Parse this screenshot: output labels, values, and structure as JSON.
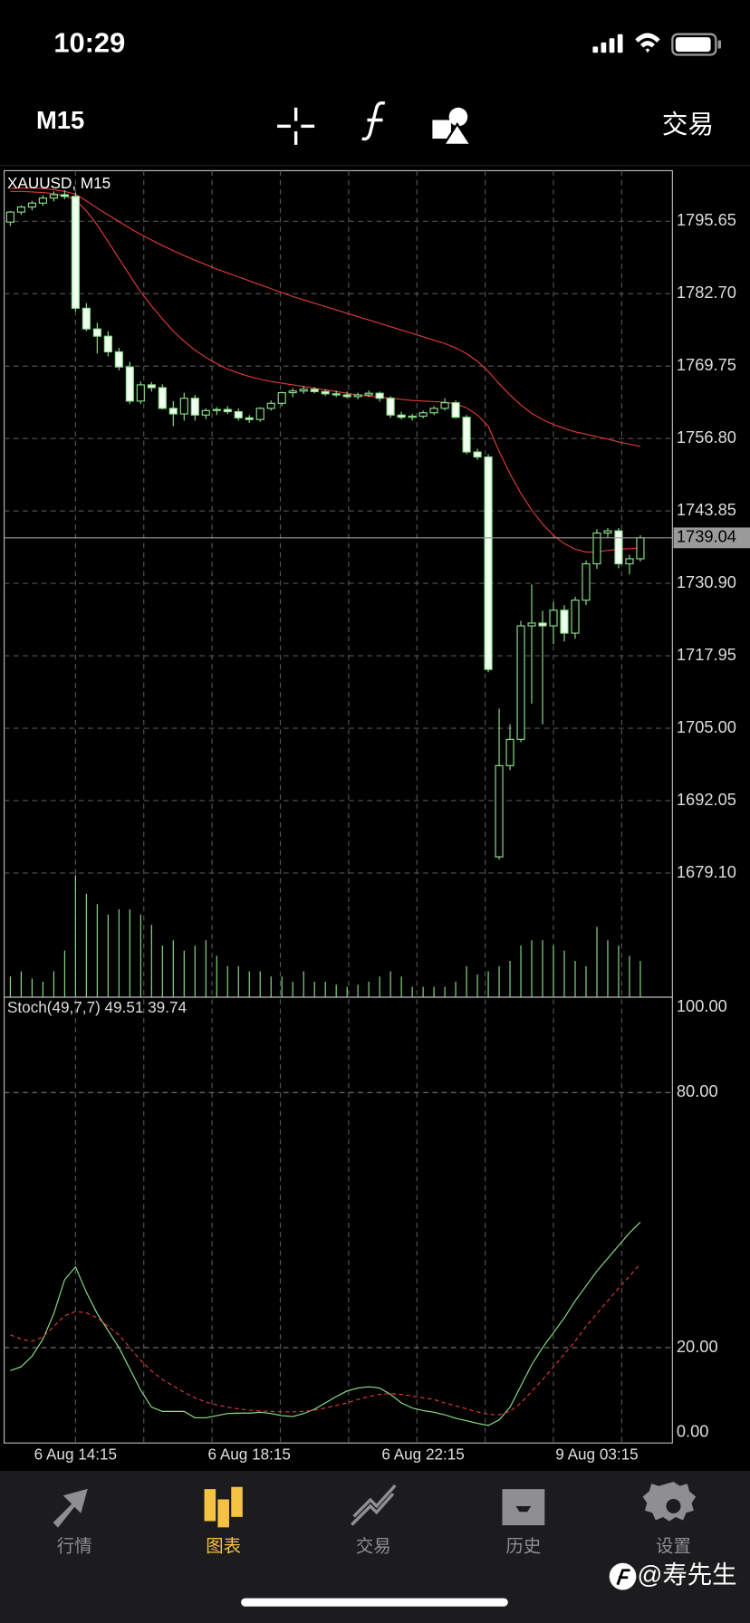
{
  "status_bar": {
    "time": "10:29"
  },
  "toolbar": {
    "timeframe": "M15",
    "trade_button": "交易"
  },
  "chart_data": [
    {
      "type": "candlestick",
      "title": "XAUUSD, M15",
      "open": [
        1795.5,
        1797.3,
        1798.2,
        1798.9,
        1799.8,
        1800.4,
        1800.1,
        1780.1,
        1776.4,
        1775.1,
        1772.3,
        1769.6,
        1763.5,
        1766.4,
        1765.9,
        1762.2,
        1761.2,
        1764.0,
        1761.0,
        1761.8,
        1762.0,
        1761.6,
        1760.5,
        1760.2,
        1762.2,
        1763.1,
        1765.0,
        1765.3,
        1765.6,
        1765.2,
        1764.8,
        1764.6,
        1764.3,
        1764.6,
        1764.9,
        1764.0,
        1761.0,
        1760.6,
        1760.8,
        1761.4,
        1762.2,
        1763.2,
        1760.6,
        1754.4,
        1753.5,
        1682.0,
        1698.3,
        1703.0,
        1723.3,
        1723.8,
        1723.3,
        1726.1,
        1722.0,
        1727.9,
        1734.4,
        1739.9,
        1740.3,
        1734.4,
        1735.3
      ],
      "high": [
        1797.5,
        1798.5,
        1799.3,
        1800.3,
        1801.0,
        1801.2,
        1800.8,
        1781.0,
        1777.5,
        1776.0,
        1773.0,
        1770.5,
        1767.0,
        1766.9,
        1766.5,
        1763.5,
        1765.0,
        1764.6,
        1762.2,
        1762.4,
        1762.6,
        1762.2,
        1761.0,
        1762.4,
        1763.6,
        1765.2,
        1765.8,
        1766.2,
        1766.0,
        1765.6,
        1765.4,
        1765.2,
        1765.0,
        1765.4,
        1765.2,
        1764.4,
        1761.6,
        1761.2,
        1761.8,
        1762.6,
        1764.0,
        1763.6,
        1761.0,
        1755.0,
        1754.0,
        1708.5,
        1705.7,
        1724.2,
        1730.7,
        1726.0,
        1727.5,
        1727.0,
        1728.5,
        1735.0,
        1740.6,
        1740.8,
        1740.8,
        1736.0,
        1739.5
      ],
      "low": [
        1794.8,
        1796.8,
        1797.6,
        1798.4,
        1799.2,
        1799.6,
        1779.5,
        1776.0,
        1772.0,
        1771.5,
        1769.0,
        1763.0,
        1763.0,
        1765.2,
        1762.0,
        1759.0,
        1760.0,
        1760.0,
        1760.3,
        1761.0,
        1761.2,
        1760.0,
        1759.6,
        1759.8,
        1761.8,
        1762.6,
        1764.2,
        1764.8,
        1764.9,
        1764.4,
        1764.2,
        1764.0,
        1763.8,
        1764.2,
        1763.4,
        1760.5,
        1760.2,
        1760.0,
        1760.4,
        1761.0,
        1761.8,
        1760.4,
        1754.0,
        1753.0,
        1715.0,
        1681.5,
        1697.5,
        1702.5,
        1709.4,
        1705.7,
        1720.0,
        1720.5,
        1721.0,
        1727.0,
        1733.5,
        1739.0,
        1733.6,
        1732.5,
        1734.8
      ],
      "close": [
        1797.3,
        1798.2,
        1798.9,
        1799.8,
        1800.4,
        1800.1,
        1780.1,
        1776.4,
        1775.1,
        1772.3,
        1769.6,
        1763.5,
        1766.4,
        1765.9,
        1762.2,
        1761.2,
        1764.0,
        1761.0,
        1761.8,
        1762.0,
        1761.6,
        1760.5,
        1760.2,
        1762.2,
        1763.1,
        1765.0,
        1765.3,
        1765.6,
        1765.2,
        1764.8,
        1764.6,
        1764.3,
        1764.6,
        1764.9,
        1764.0,
        1761.0,
        1760.6,
        1760.8,
        1761.4,
        1762.2,
        1763.2,
        1760.6,
        1754.4,
        1753.5,
        1715.5,
        1698.3,
        1703.0,
        1723.3,
        1723.8,
        1723.3,
        1726.1,
        1722.0,
        1727.9,
        1734.4,
        1739.9,
        1740.3,
        1734.4,
        1735.3,
        1739.04
      ],
      "volume": [
        200,
        250,
        180,
        150,
        250,
        450,
        1180,
        1000,
        900,
        800,
        850,
        850,
        800,
        700,
        500,
        550,
        450,
        500,
        550,
        400,
        300,
        300,
        250,
        250,
        200,
        200,
        150,
        250,
        150,
        150,
        120,
        100,
        120,
        150,
        200,
        250,
        200,
        100,
        100,
        100,
        100,
        150,
        300,
        220,
        250,
        300,
        350,
        500,
        550,
        550,
        500,
        450,
        350,
        300,
        680,
        550,
        500,
        400,
        350
      ],
      "moving_averages": [
        {
          "color": "#e03a3a",
          "values": [
            1801.0,
            1801.0,
            1800.9,
            1800.8,
            1800.6,
            1800.2,
            1799.5,
            1797.5,
            1795.0,
            1792.0,
            1789.0,
            1786.0,
            1783.0,
            1780.5,
            1778.2,
            1776.0,
            1774.2,
            1772.6,
            1771.3,
            1770.2,
            1769.2,
            1768.5,
            1767.9,
            1767.4,
            1767.0,
            1766.7,
            1766.4,
            1766.1,
            1765.8,
            1765.5,
            1765.2,
            1764.9,
            1764.6,
            1764.4,
            1764.2,
            1764.0,
            1763.8,
            1763.6,
            1763.5,
            1763.4,
            1763.3,
            1763.0,
            1762.3,
            1761.0,
            1759.0,
            1754.5,
            1750.5,
            1747.0,
            1744.0,
            1741.5,
            1739.5,
            1738.0,
            1737.0,
            1736.5,
            1736.5,
            1736.8,
            1737.0,
            1737.1,
            1737.2
          ]
        },
        {
          "color": "#e03a3a",
          "values": [
            1801.5,
            1801.6,
            1801.6,
            1801.5,
            1801.3,
            1801.0,
            1800.5,
            1799.3,
            1798.0,
            1796.8,
            1795.6,
            1794.4,
            1793.3,
            1792.3,
            1791.3,
            1790.4,
            1789.5,
            1788.7,
            1787.9,
            1787.1,
            1786.4,
            1785.7,
            1785.0,
            1784.3,
            1783.6,
            1782.9,
            1782.2,
            1781.6,
            1781.0,
            1780.4,
            1779.8,
            1779.2,
            1778.6,
            1778.0,
            1777.4,
            1776.8,
            1776.2,
            1775.6,
            1775.0,
            1774.4,
            1773.8,
            1773.0,
            1772.0,
            1770.6,
            1768.8,
            1766.6,
            1764.6,
            1762.8,
            1761.3,
            1760.2,
            1759.3,
            1758.6,
            1758.0,
            1757.6,
            1757.1,
            1756.7,
            1756.2,
            1755.8,
            1755.4
          ]
        }
      ],
      "up_color": "#000000",
      "down_color": "#f0fff0",
      "wick_color": "#8be28b",
      "volume_color": "#8be28b",
      "current_price": 1739.04,
      "ylim": [
        1656.9,
        1804.7
      ],
      "yticks": [
        1795.65,
        {
          "value": 1782.7,
          "label": "1782.70"
        },
        1769.75,
        {
          "value": 1756.8,
          "label": "1756.80"
        },
        1743.85,
        {
          "value": 1730.9,
          "label": "1730.90"
        },
        1717.95,
        {
          "value": 1705.0,
          "label": "1705.00"
        },
        1692.05,
        {
          "value": 1679.1,
          "label": "1679.10"
        }
      ],
      "grid": true
    },
    {
      "type": "line",
      "title": "Stoch(49,7,7) 49.51 39.74",
      "categories": [
        null,
        null,
        null,
        null,
        null,
        null,
        "6 Aug 14:15",
        null,
        null,
        null,
        null,
        null,
        null,
        null,
        null,
        null,
        null,
        null,
        null,
        null,
        null,
        null,
        "6 Aug 18:15",
        null,
        null,
        null,
        null,
        null,
        null,
        null,
        null,
        null,
        null,
        null,
        null,
        null,
        null,
        null,
        "6 Aug 22:15",
        null,
        null,
        null,
        null,
        null,
        null,
        null,
        null,
        null,
        null,
        null,
        null,
        null,
        null,
        null,
        "9 Aug 03:15",
        null,
        null,
        null,
        null
      ],
      "series": [
        {
          "color": "#8be28b",
          "dashed": false,
          "values": [
            14.6,
            15.5,
            18,
            22,
            28,
            36,
            39,
            33,
            28,
            24,
            20,
            15,
            10,
            6,
            5,
            5,
            5,
            3.5,
            3.5,
            4,
            4.5,
            4.6,
            4.6,
            4.8,
            4.5,
            4,
            3.8,
            4.5,
            5.5,
            7,
            8.5,
            9.8,
            10.5,
            10.8,
            10.5,
            9,
            7,
            5.8,
            5.2,
            4.8,
            4.2,
            3.4,
            2.8,
            2.2,
            1.7,
            3,
            6,
            11,
            16,
            20,
            23.5,
            27,
            31,
            34.5,
            38,
            41,
            44,
            47,
            49.51
          ]
        },
        {
          "color": "#e03a3a",
          "dashed": true,
          "values": [
            23,
            22,
            21.5,
            22.5,
            25,
            27.5,
            28.5,
            28.2,
            27,
            25,
            23,
            20,
            17,
            14.5,
            12.5,
            11,
            9.5,
            8.2,
            7.2,
            6.5,
            6,
            5.6,
            5.3,
            5.1,
            5,
            4.9,
            4.9,
            5,
            5.3,
            5.8,
            6.4,
            7,
            7.8,
            8.5,
            9,
            9.2,
            9,
            8.6,
            8.2,
            7.8,
            7,
            6.3,
            5.6,
            4.9,
            4.3,
            4.2,
            5,
            7,
            9.7,
            12.5,
            15.5,
            18.5,
            21.5,
            25,
            28,
            31,
            34,
            36.8,
            39.74
          ]
        }
      ],
      "ylim": [
        0,
        100
      ],
      "yticks": [
        {
          "value": 100,
          "label": "100.00"
        },
        {
          "value": 80,
          "label": "80.00"
        },
        {
          "value": 20,
          "label": "20.00"
        },
        {
          "value": 0,
          "label": "0.00"
        }
      ],
      "grid": true
    }
  ],
  "tab_bar": {
    "active_color": "#f5c242",
    "color": "#8e8e93",
    "tabs": [
      {
        "label": "行情",
        "active": false
      },
      {
        "label": "图表",
        "active": true
      },
      {
        "label": "交易",
        "active": false
      },
      {
        "label": "历史",
        "active": false
      },
      {
        "label": "设置",
        "active": false
      }
    ]
  },
  "watermark": "@寿先生"
}
